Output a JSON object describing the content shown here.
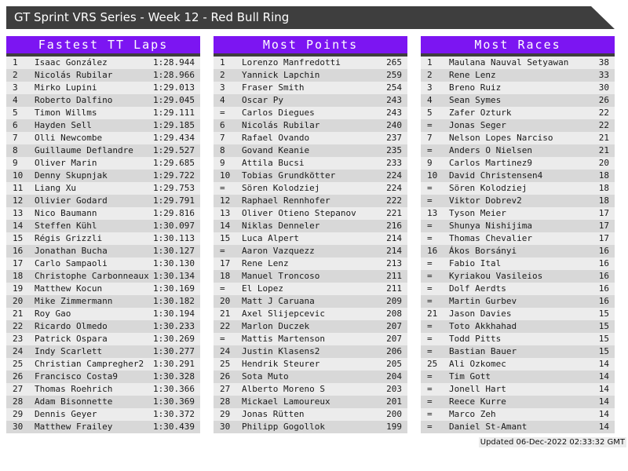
{
  "title": "GT Sprint VRS Series - Week 12 - Red Bull Ring",
  "footer": {
    "updated": "Updated 06-Dec-2022 02:33:32 GMT"
  },
  "colors": {
    "accent": "#7c15f2",
    "dark": "#3e3e3e",
    "stripe_light": "#ececec",
    "stripe_dark": "#d8d8d8",
    "header_text": "#ffffff",
    "row_text": "#1a1a1a"
  },
  "boards": [
    {
      "title": "Fastest TT Laps",
      "columns": [
        "rank",
        "name",
        "lap_time"
      ],
      "rows": [
        [
          "1",
          "Isaac González",
          "1:28.944"
        ],
        [
          "2",
          "Nicolás Rubilar",
          "1:28.966"
        ],
        [
          "3",
          "Mirko Lupini",
          "1:29.013"
        ],
        [
          "4",
          "Roberto Dalfino",
          "1:29.045"
        ],
        [
          "5",
          "Timon Willms",
          "1:29.111"
        ],
        [
          "6",
          "Hayden Sell",
          "1:29.185"
        ],
        [
          "7",
          "Olli Newcombe",
          "1:29.434"
        ],
        [
          "8",
          "Guillaume Deflandre",
          "1:29.527"
        ],
        [
          "9",
          "Oliver Marin",
          "1:29.685"
        ],
        [
          "10",
          "Denny Skupnjak",
          "1:29.722"
        ],
        [
          "11",
          "Liang Xu",
          "1:29.753"
        ],
        [
          "12",
          "Olivier Godard",
          "1:29.791"
        ],
        [
          "13",
          "Nico Baumann",
          "1:29.816"
        ],
        [
          "14",
          "Steffen Kühl",
          "1:30.097"
        ],
        [
          "15",
          "Régis Grizzli",
          "1:30.113"
        ],
        [
          "16",
          "Jonathan Bucha",
          "1:30.127"
        ],
        [
          "17",
          "Carlo Sampaoli",
          "1:30.130"
        ],
        [
          "18",
          "Christophe Carbonneaux",
          "1:30.134"
        ],
        [
          "19",
          "Matthew Kocun",
          "1:30.169"
        ],
        [
          "20",
          "Mike Zimmermann",
          "1:30.182"
        ],
        [
          "21",
          "Roy Gao",
          "1:30.194"
        ],
        [
          "22",
          "Ricardo Olmedo",
          "1:30.233"
        ],
        [
          "23",
          "Patrick Ospara",
          "1:30.269"
        ],
        [
          "24",
          "Indy Scarlett",
          "1:30.277"
        ],
        [
          "25",
          "Christian Campregher2",
          "1:30.291"
        ],
        [
          "26",
          "Francisco Costa9",
          "1:30.328"
        ],
        [
          "27",
          "Thomas Roehrich",
          "1:30.366"
        ],
        [
          "28",
          "Adam Bisonnette",
          "1:30.369"
        ],
        [
          "29",
          "Dennis Geyer",
          "1:30.372"
        ],
        [
          "30",
          "Matthew Frailey",
          "1:30.439"
        ]
      ]
    },
    {
      "title": "Most Points",
      "columns": [
        "rank",
        "name",
        "points"
      ],
      "rows": [
        [
          "1",
          "Lorenzo Manfredotti",
          "265"
        ],
        [
          "2",
          "Yannick Lapchin",
          "259"
        ],
        [
          "3",
          "Fraser Smith",
          "254"
        ],
        [
          "4",
          "Oscar Py",
          "243"
        ],
        [
          "=",
          "Carlos Diegues",
          "243"
        ],
        [
          "6",
          "Nicolás Rubilar",
          "240"
        ],
        [
          "7",
          "Rafael Ovando",
          "237"
        ],
        [
          "8",
          "Govand Keanie",
          "235"
        ],
        [
          "9",
          "Attila Bucsi",
          "233"
        ],
        [
          "10",
          "Tobias Grundkötter",
          "224"
        ],
        [
          "=",
          "Sören Kolodziej",
          "224"
        ],
        [
          "12",
          "Raphael Rennhofer",
          "222"
        ],
        [
          "13",
          "Oliver Otieno Stepanov",
          "221"
        ],
        [
          "14",
          "Niklas Denneler",
          "216"
        ],
        [
          "15",
          "Luca Alpert",
          "214"
        ],
        [
          "=",
          "Aaron Vazquezz",
          "214"
        ],
        [
          "17",
          "Rene Lenz",
          "213"
        ],
        [
          "18",
          "Manuel Troncoso",
          "211"
        ],
        [
          "=",
          "El Lopez",
          "211"
        ],
        [
          "20",
          "Matt J Caruana",
          "209"
        ],
        [
          "21",
          "Axel Slijepcevic",
          "208"
        ],
        [
          "22",
          "Marlon Duczek",
          "207"
        ],
        [
          "=",
          "Mattis Martenson",
          "207"
        ],
        [
          "24",
          "Justin Klasens2",
          "206"
        ],
        [
          "25",
          "Hendrik Steurer",
          "205"
        ],
        [
          "26",
          "Sota Muto",
          "204"
        ],
        [
          "27",
          "Alberto Moreno S",
          "203"
        ],
        [
          "28",
          "Mickael Lamoureux",
          "201"
        ],
        [
          "29",
          "Jonas Rütten",
          "200"
        ],
        [
          "30",
          "Philipp Gogollok",
          "199"
        ]
      ]
    },
    {
      "title": "Most Races",
      "columns": [
        "rank",
        "name",
        "races"
      ],
      "rows": [
        [
          "1",
          "Maulana Nauval Setyawan",
          "38"
        ],
        [
          "2",
          "Rene Lenz",
          "33"
        ],
        [
          "3",
          "Breno Ruiz",
          "30"
        ],
        [
          "4",
          "Sean Symes",
          "26"
        ],
        [
          "5",
          "Zafer Ozturk",
          "22"
        ],
        [
          "=",
          "Jonas Seger",
          "22"
        ],
        [
          "7",
          "Nelson Lopes Narciso",
          "21"
        ],
        [
          "=",
          "Anders O Nielsen",
          "21"
        ],
        [
          "9",
          "Carlos Martinez9",
          "20"
        ],
        [
          "10",
          "David Christensen4",
          "18"
        ],
        [
          "=",
          "Sören Kolodziej",
          "18"
        ],
        [
          "=",
          "Viktor Dobrev2",
          "18"
        ],
        [
          "13",
          "Tyson Meier",
          "17"
        ],
        [
          "=",
          "Shunya Nishijima",
          "17"
        ],
        [
          "=",
          "Thomas Chevalier",
          "17"
        ],
        [
          "16",
          "Ákos Borsányi",
          "16"
        ],
        [
          "=",
          "Fabio Ital",
          "16"
        ],
        [
          "=",
          "Kyriakou Vasileios",
          "16"
        ],
        [
          "=",
          "Dolf Aerdts",
          "16"
        ],
        [
          "=",
          "Martin Gurbev",
          "16"
        ],
        [
          "21",
          "Jason Davies",
          "15"
        ],
        [
          "=",
          "Toto Akkhahad",
          "15"
        ],
        [
          "=",
          "Todd Pitts",
          "15"
        ],
        [
          "=",
          "Bastian Bauer",
          "15"
        ],
        [
          "25",
          "Ali Ozkomec",
          "14"
        ],
        [
          "=",
          "Tim Gott",
          "14"
        ],
        [
          "=",
          "Jonell Hart",
          "14"
        ],
        [
          "=",
          "Reece Kurre",
          "14"
        ],
        [
          "=",
          "Marco Zeh",
          "14"
        ],
        [
          "=",
          "Daniel St-Amant",
          "14"
        ]
      ]
    }
  ]
}
